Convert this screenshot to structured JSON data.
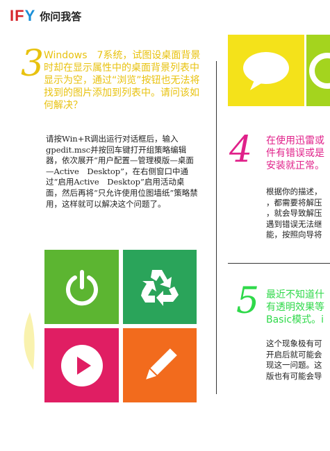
{
  "brand": {
    "mark_i": "I",
    "mark_f": "F",
    "mark_y": "Y",
    "name": "你问我答"
  },
  "section3": {
    "number": "3",
    "heading": "Windows　7系统，试图设桌面背景时却在显示属性中的桌面背景列表中显示为空，通过“浏览”按钮也无法将找到的图片添加到列表中。请问该如何解决？",
    "answer": "请按Win+R调出运行对话框后，输入gpedit.msc并按回车键打开组策略编辑器，依次展开“用户配置—管理模版—桌面—Active　Desktop”，在右侧窗口中通过“启用Active　Desktop”启用活动桌面，然后再将“只允许使用位图墙纸”策略禁用，这样就可以解决这个问题了。"
  },
  "section4": {
    "number": "4",
    "heading": "在使用迅雷或\n件有错误或是\n安装就正常。",
    "answer": "根据你的描述，\n，都需要将解压\n，就会导致解压\n遇到错误无法继\n能，按照向导将"
  },
  "section5": {
    "number": "5",
    "heading": "最近不知道什\n有透明效果等\nBasic模式。i",
    "answer": "这个现象极有可\n开启后就可能会\n现这一问题。这\n版也有可能会导"
  },
  "icons": {
    "top_tiles": [
      "chat-bubble-icon",
      "ring-icon"
    ],
    "grid_tiles": [
      "power-icon",
      "recycle-icon",
      "play-icon",
      "pencil-icon"
    ]
  },
  "colors": {
    "yellow_heading": "#e8c20f",
    "pink_heading": "#e0218a",
    "green_heading": "#2fd94a",
    "tile_yellow": "#f4e21a",
    "tile_green_light": "#a4d41e",
    "tile_green": "#5cb531",
    "tile_teal": "#2aa45a",
    "tile_pink": "#e01e63",
    "tile_orange": "#f26b1d"
  }
}
